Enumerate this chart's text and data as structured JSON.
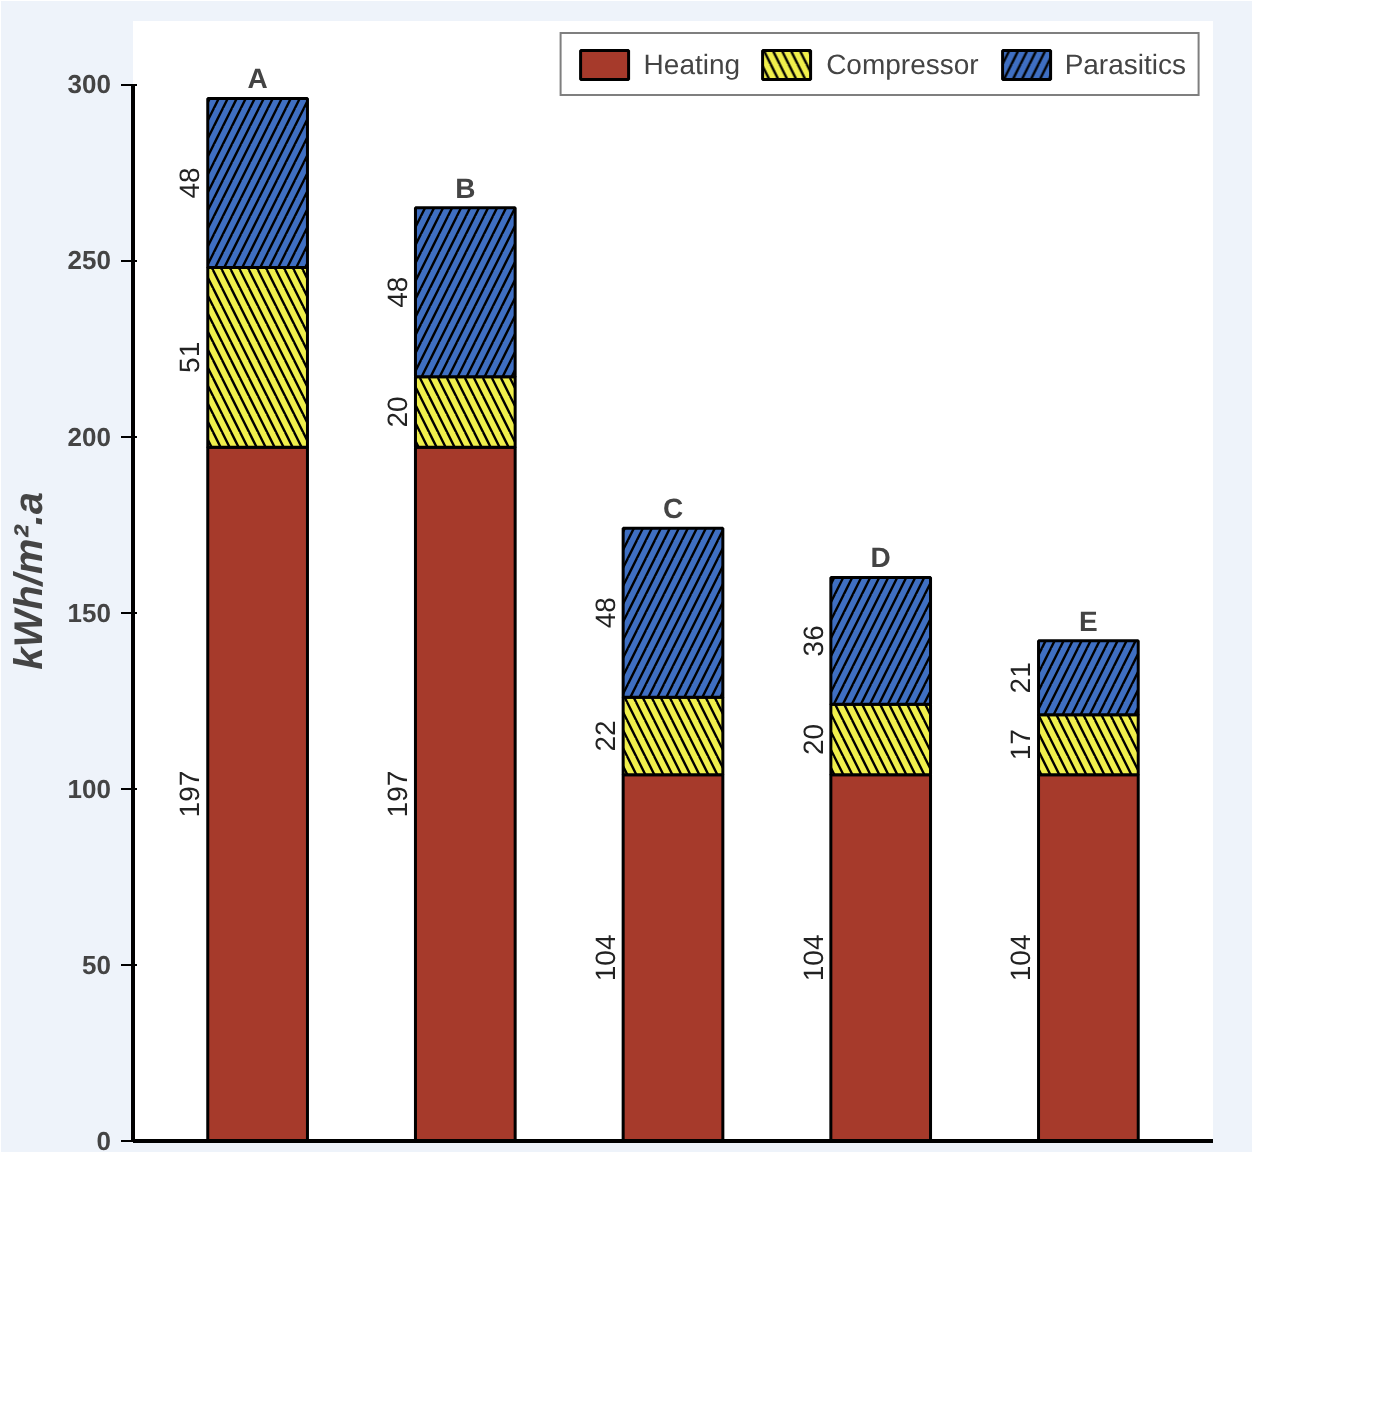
{
  "chart_data": {
    "type": "bar",
    "stacked": true,
    "ylabel": "kWh/m².a",
    "categories": [
      "A",
      "B",
      "C",
      "D",
      "E"
    ],
    "series": [
      {
        "name": "Heating",
        "color": "#a63a2b",
        "values": [
          197,
          197,
          104,
          104,
          104
        ]
      },
      {
        "name": "Compressor",
        "color": "#f0ef4c",
        "values": [
          51,
          20,
          22,
          20,
          17
        ]
      },
      {
        "name": "Parasitics",
        "color": "#3f6fc2",
        "values": [
          48,
          48,
          48,
          36,
          21
        ]
      }
    ],
    "ylim": [
      0,
      300
    ],
    "yticks": [
      0,
      50,
      100,
      150,
      200,
      250,
      300
    ],
    "data_labels": true,
    "legend": "top right",
    "grid": false,
    "tick_labels": "y"
  }
}
